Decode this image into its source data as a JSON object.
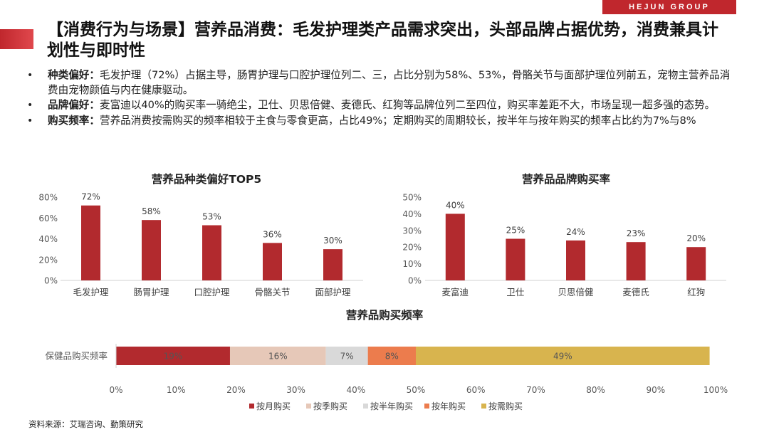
{
  "brand": {
    "logo_text": "HEJUN GROUP",
    "accent": "#c0272d"
  },
  "title": "【消费行为与场景】营养品消费：毛发护理类产品需求突出，头部品牌占据优势，消费兼具计划性与即时性",
  "bullets": [
    {
      "label": "种类偏好：",
      "text": "毛发护理（72%）占据主导，肠胃护理与口腔护理位列二、三，占比分别为58%、53%，骨骼关节与面部护理位列前五，宠物主营养品消费由宠物颜值与内在健康驱动。"
    },
    {
      "label": "品牌偏好：",
      "text": "麦富迪以40%的购买率一骑绝尘，卫仕、贝思倍健、麦德氏、红狗等品牌位列二至四位，购买率差距不大，市场呈现一超多强的态势。"
    },
    {
      "label": "购买频率：",
      "text": "营养品消费按需购买的频率相较于主食与零食更高，占比49%；定期购买的周期较长，按半年与按年购买的频率占比约为7%与8%"
    }
  ],
  "source": "资料来源：艾瑞咨询、勤策研究",
  "chart_data": [
    {
      "type": "bar",
      "title": "营养品种类偏好TOP5",
      "categories": [
        "毛发护理",
        "肠胃护理",
        "口腔护理",
        "骨骼关节",
        "面部护理"
      ],
      "values": [
        72,
        58,
        53,
        36,
        30
      ],
      "value_labels": [
        "72%",
        "58%",
        "53%",
        "36%",
        "30%"
      ],
      "ylim": [
        0,
        80
      ],
      "yticks": [
        "0%",
        "20%",
        "40%",
        "60%",
        "80%"
      ],
      "ytick_values": [
        0,
        20,
        40,
        60,
        80
      ],
      "color": "#b22a2e",
      "grid": false
    },
    {
      "type": "bar",
      "title": "营养品品牌购买率",
      "categories": [
        "麦富迪",
        "卫仕",
        "贝思倍健",
        "麦德氏",
        "红狗"
      ],
      "values": [
        40,
        25,
        24,
        23,
        20
      ],
      "value_labels": [
        "40%",
        "25%",
        "24%",
        "23%",
        "20%"
      ],
      "ylim": [
        0,
        50
      ],
      "yticks": [
        "0%",
        "10%",
        "20%",
        "30%",
        "40%",
        "50%"
      ],
      "ytick_values": [
        0,
        10,
        20,
        30,
        40,
        50
      ],
      "color": "#b22a2e",
      "grid": false
    },
    {
      "type": "bar",
      "orientation": "horizontal-stacked",
      "title": "营养品购买频率",
      "categories": [
        "保健品购买频率"
      ],
      "series": [
        {
          "name": "按月购买",
          "values": [
            19
          ],
          "label": "19%",
          "color": "#b22a2e"
        },
        {
          "name": "按季购买",
          "values": [
            16
          ],
          "label": "16%",
          "color": "#e6c8b8"
        },
        {
          "name": "按半年购买",
          "values": [
            7
          ],
          "label": "7%",
          "color": "#d9d9d9"
        },
        {
          "name": "按年购买",
          "values": [
            8
          ],
          "label": "8%",
          "color": "#ec7c4d"
        },
        {
          "name": "按需购买",
          "values": [
            49
          ],
          "label": "49%",
          "color": "#d8b44e"
        }
      ],
      "xlim": [
        0,
        100
      ],
      "xticks": [
        "0%",
        "10%",
        "20%",
        "30%",
        "40%",
        "50%",
        "60%",
        "70%",
        "80%",
        "90%",
        "100%"
      ],
      "legend": "bottom",
      "grid": false
    }
  ]
}
